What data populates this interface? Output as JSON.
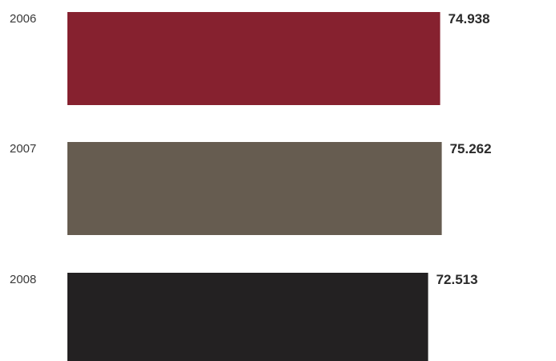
{
  "chart_data": {
    "type": "bar",
    "orientation": "horizontal",
    "categories": [
      "2006",
      "2007",
      "2008"
    ],
    "values": [
      74.938,
      75.262,
      72.513
    ],
    "value_labels": [
      "74.938",
      "75.262",
      "72.513"
    ],
    "colors": [
      "#86212f",
      "#665c50",
      "#232122"
    ],
    "title": "",
    "xlabel": "",
    "ylabel": "",
    "grid": false
  }
}
